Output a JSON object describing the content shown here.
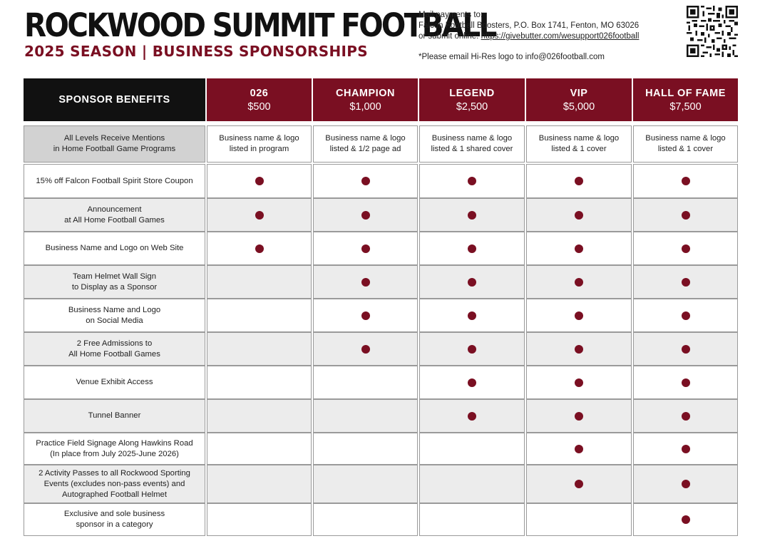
{
  "header": {
    "title": "ROCKWOOD SUMMIT FOOTBALL",
    "subtitle": "2025 SEASON | BUSINESS SPONSORSHIPS"
  },
  "mail": {
    "line1": "Mail payments to:",
    "line2": "Falcon Football Boosters, P.O. Box 1741, Fenton, MO 63026",
    "line3_prefix": "or submit online: ",
    "line3_url": "https://givebutter.com/wesupport026football",
    "email_note": "*Please email Hi-Res logo to info@026football.com"
  },
  "table": {
    "benefits_header": "SPONSOR BENEFITS",
    "levels": [
      {
        "name": "026",
        "price": "$500"
      },
      {
        "name": "CHAMPION",
        "price": "$1,000"
      },
      {
        "name": "LEGEND",
        "price": "$2,500"
      },
      {
        "name": "VIP",
        "price": "$5,000"
      },
      {
        "name": "HALL OF FAME",
        "price": "$7,500"
      }
    ],
    "mentions_row": {
      "label": "All Levels Receive Mentions\nin Home Football Game Programs",
      "cells": [
        "Business name & logo\nlisted in program",
        "Business name & logo\nlisted & 1/2 page ad",
        "Business name & logo\nlisted & 1 shared cover",
        "Business name & logo\nlisted & 1 cover",
        "Business name & logo\nlisted & 1 cover"
      ]
    },
    "rows": [
      {
        "label": "15% off Falcon Football Spirit Store Coupon",
        "included": [
          true,
          true,
          true,
          true,
          true
        ]
      },
      {
        "label": "Announcement\nat All Home Football Games",
        "included": [
          true,
          true,
          true,
          true,
          true
        ]
      },
      {
        "label": "Business Name and Logo on Web Site",
        "included": [
          true,
          true,
          true,
          true,
          true
        ]
      },
      {
        "label": "Team Helmet Wall Sign\nto Display as a Sponsor",
        "included": [
          false,
          true,
          true,
          true,
          true
        ]
      },
      {
        "label": "Business Name and Logo\non Social Media",
        "included": [
          false,
          true,
          true,
          true,
          true
        ]
      },
      {
        "label": "2 Free Admissions to\nAll Home Football Games",
        "included": [
          false,
          true,
          true,
          true,
          true
        ]
      },
      {
        "label": "Venue Exhibit Access",
        "included": [
          false,
          false,
          true,
          true,
          true
        ]
      },
      {
        "label": "Tunnel Banner",
        "included": [
          false,
          false,
          true,
          true,
          true
        ]
      },
      {
        "label": "Practice Field Signage Along Hawkins Road\n(In place from July 2025-June 2026)",
        "included": [
          false,
          false,
          false,
          true,
          true
        ]
      },
      {
        "label": "2 Activity Passes to all Rockwood Sporting\nEvents (excludes non-pass events) and\nAutographed Football Helmet",
        "included": [
          false,
          false,
          false,
          true,
          true
        ]
      },
      {
        "label": "Exclusive and sole business\nsponsor in a category",
        "included": [
          false,
          false,
          false,
          false,
          true
        ]
      }
    ],
    "dot_color": "#7a0f22",
    "header_red": "#7a0f22"
  }
}
